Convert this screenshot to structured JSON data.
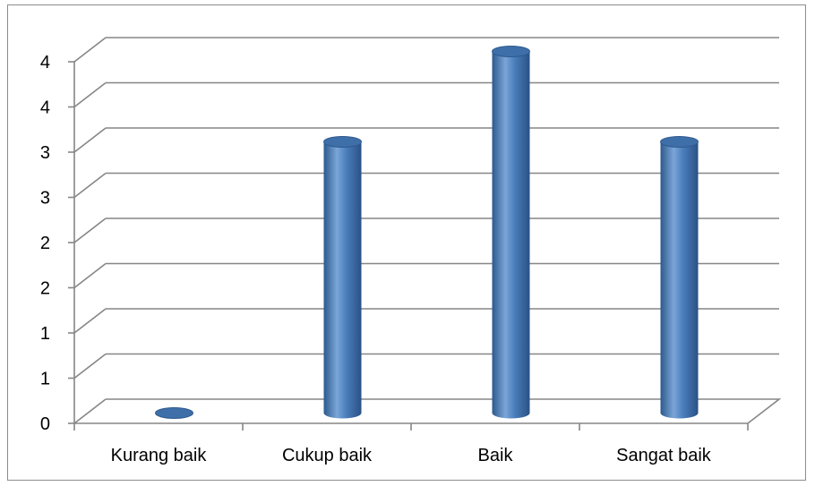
{
  "chart_data": {
    "type": "bar",
    "categories": [
      "Kurang baik",
      "Cukup baik",
      "Baik",
      "Sangat baik"
    ],
    "values": [
      0,
      3,
      4,
      3
    ],
    "y_tick_labels": [
      "0",
      "1",
      "1",
      "2",
      "2",
      "3",
      "3",
      "4",
      "4"
    ],
    "ylim": [
      0,
      4
    ],
    "grid": true,
    "style": "3d-cylinder",
    "colors": {
      "bar": "#4a7ebb",
      "bar_dark": "#2d5a8e",
      "bar_light": "#7aa5d8",
      "top": "#3f6fa8",
      "grid": "#868686",
      "axis": "#868686"
    }
  }
}
